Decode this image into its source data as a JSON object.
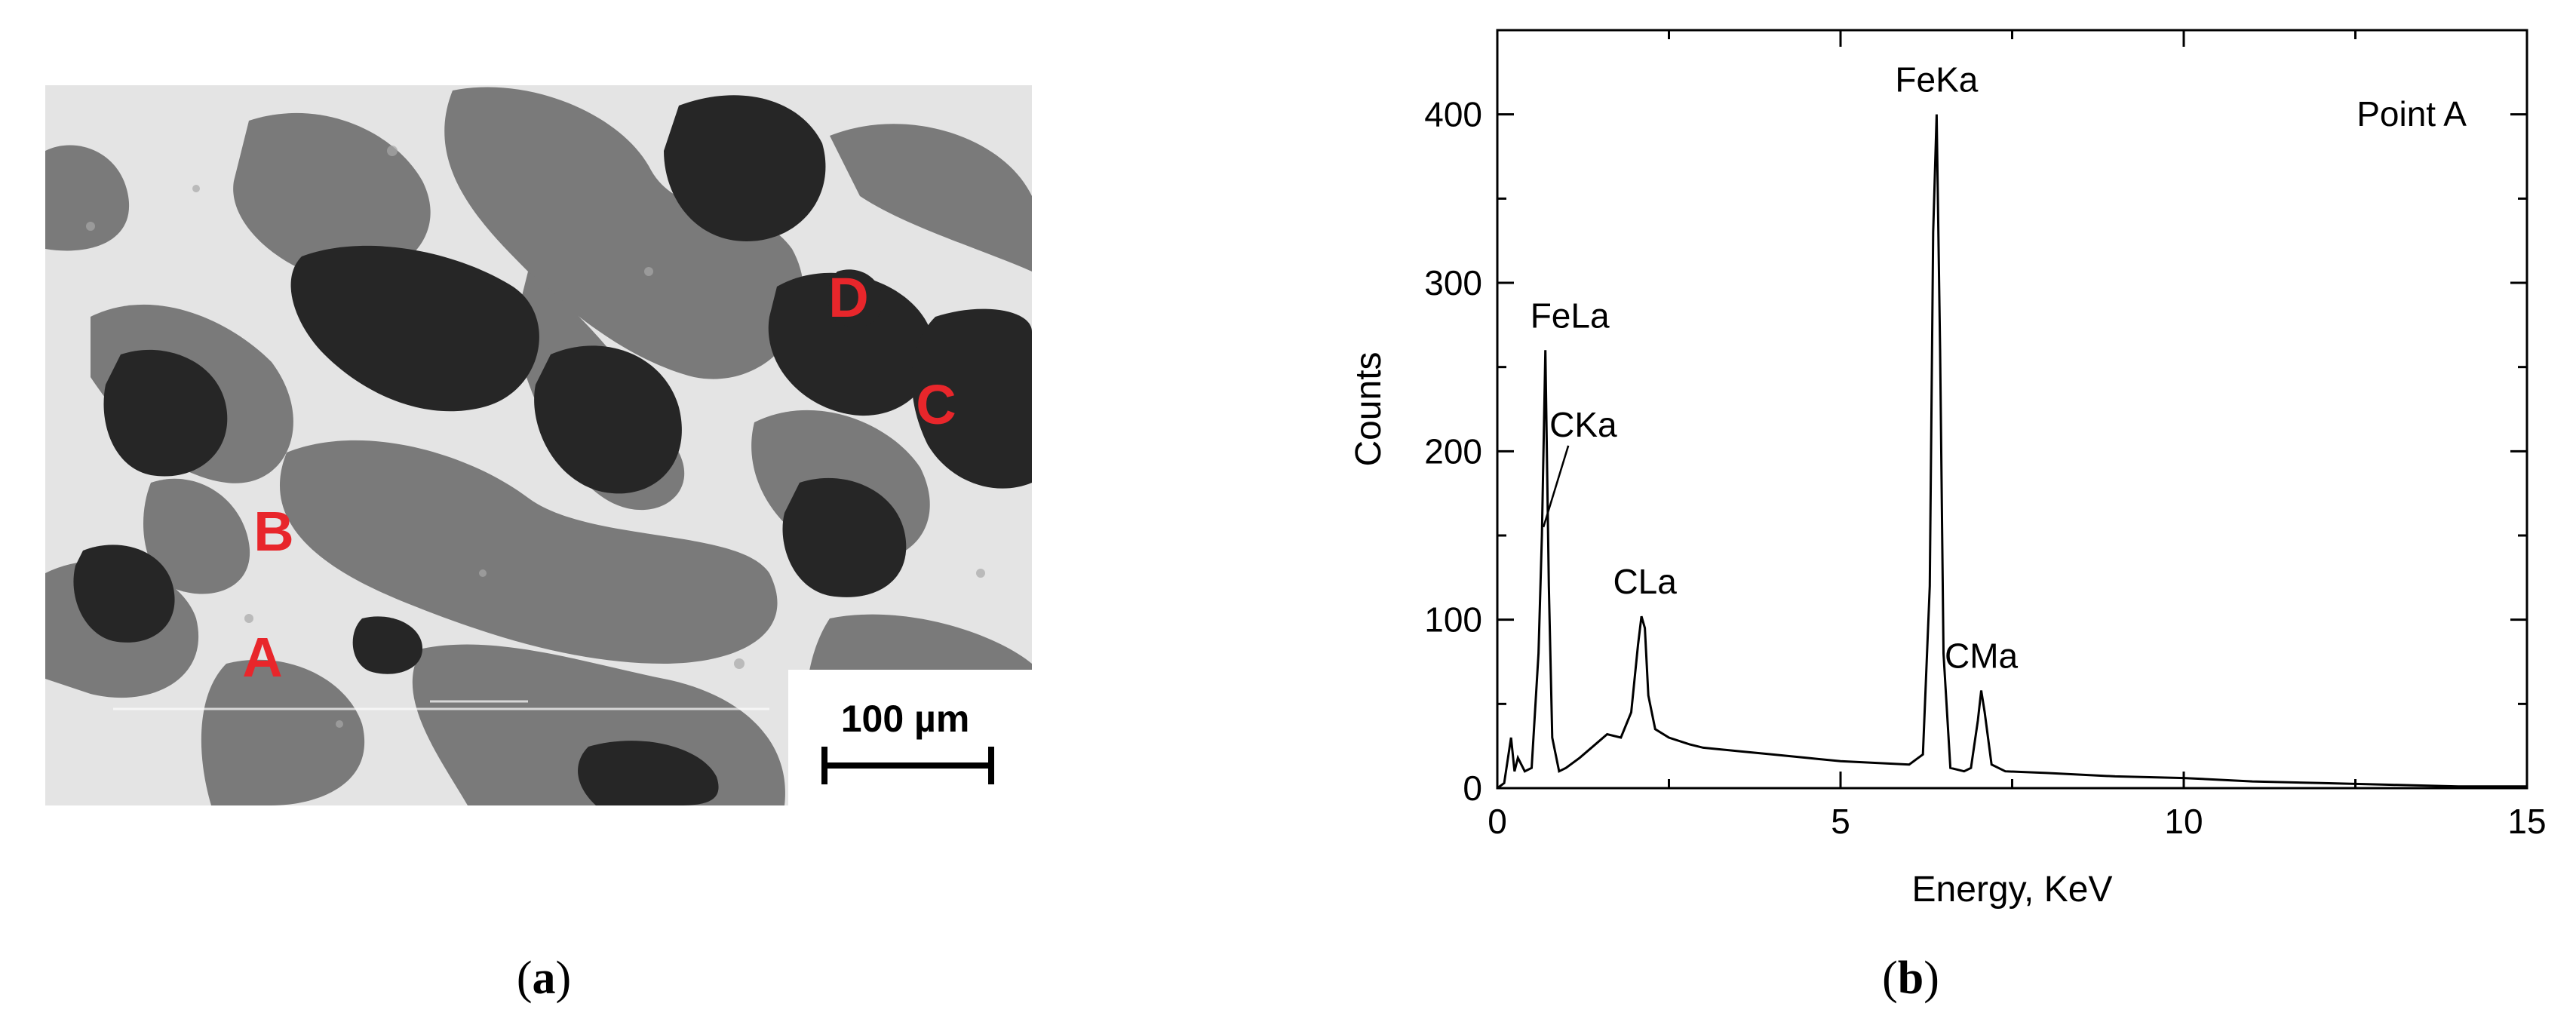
{
  "panel_a": {
    "point_labels": [
      "A",
      "B",
      "C",
      "D"
    ],
    "scale_bar_label": "100 µm",
    "caption_letter": "a"
  },
  "panel_b": {
    "caption_letter": "b"
  },
  "chart_data": {
    "type": "line",
    "title": "",
    "annotation": "Point A",
    "xlabel": "Energy, KeV",
    "ylabel": "Counts",
    "xlim": [
      0,
      15
    ],
    "ylim": [
      0,
      450
    ],
    "xticks": [
      0,
      5,
      10,
      15
    ],
    "yticks": [
      0,
      100,
      200,
      300,
      400
    ],
    "grid": false,
    "line_color": "#000000",
    "peaks": [
      {
        "label": "FeLa",
        "energy": 0.7,
        "counts": 260
      },
      {
        "label": "CKa",
        "energy": 0.65,
        "counts": 155
      },
      {
        "label": "CLa",
        "energy": 2.15,
        "counts": 102
      },
      {
        "label": "FeKa",
        "energy": 6.4,
        "counts": 400
      },
      {
        "label": "CMa",
        "energy": 7.05,
        "counts": 58
      }
    ],
    "series": [
      {
        "x": [
          0,
          0.1,
          0.2,
          0.25,
          0.3,
          0.4,
          0.5,
          0.6,
          0.65,
          0.7,
          0.75,
          0.8,
          0.9,
          1.0,
          1.2,
          1.4,
          1.6,
          1.8,
          1.95,
          2.05,
          2.1,
          2.15,
          2.2,
          2.3,
          2.5,
          2.8,
          3.0,
          3.5,
          4.0,
          4.5,
          5.0,
          5.5,
          6.0,
          6.2,
          6.3,
          6.35,
          6.4,
          6.45,
          6.5,
          6.6,
          6.8,
          6.9,
          7.0,
          7.05,
          7.1,
          7.2,
          7.4,
          8.0,
          9.0,
          10.0,
          11.0,
          12.0,
          13.0,
          14.0,
          15.0
        ],
        "y": [
          0,
          3,
          30,
          10,
          18,
          10,
          12,
          80,
          150,
          260,
          120,
          30,
          10,
          12,
          18,
          25,
          32,
          30,
          45,
          85,
          102,
          95,
          55,
          35,
          30,
          26,
          24,
          22,
          20,
          18,
          16,
          15,
          14,
          20,
          120,
          330,
          400,
          260,
          80,
          12,
          10,
          12,
          40,
          58,
          45,
          14,
          10,
          9,
          7,
          6,
          4,
          3,
          2,
          1,
          1
        ]
      }
    ]
  }
}
